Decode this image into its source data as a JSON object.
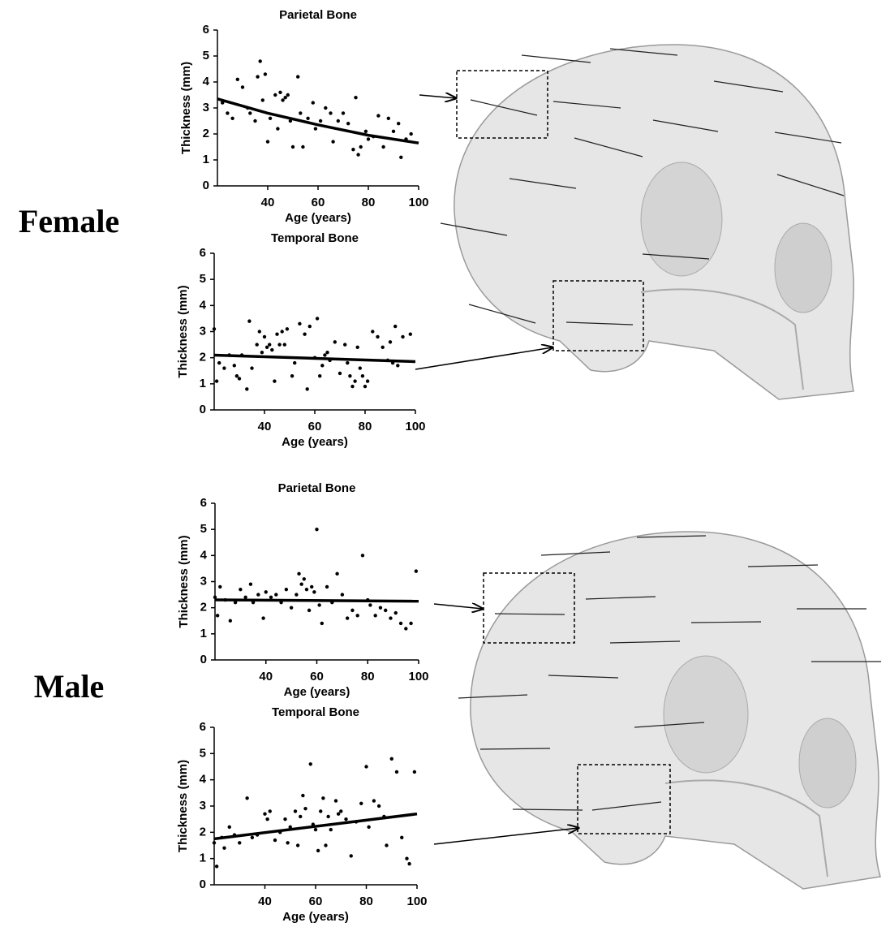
{
  "group_labels": [
    "Female",
    "Male"
  ],
  "chart_data": [
    {
      "type": "scatter",
      "title": "Parietal Bone",
      "x_label": "Age (years)",
      "y_label": "Thickness (mm)",
      "xlim": [
        20,
        100
      ],
      "ylim": [
        0,
        6
      ],
      "xticks": [
        40,
        60,
        80,
        100
      ],
      "yticks": [
        0,
        1,
        2,
        3,
        4,
        5,
        6
      ],
      "series": [
        {
          "type": "scatter",
          "color": "#000000",
          "x": [
            22,
            24,
            26,
            28,
            30,
            32,
            33,
            35,
            36,
            37,
            38,
            39,
            40,
            41,
            43,
            44,
            45,
            46,
            47,
            48,
            49,
            50,
            52,
            53,
            54,
            56,
            58,
            59,
            61,
            63,
            65,
            66,
            68,
            70,
            72,
            74,
            75,
            76,
            77,
            79,
            80,
            82,
            84,
            86,
            88,
            90,
            92,
            93,
            95,
            97
          ],
          "values": [
            3.2,
            2.8,
            2.6,
            4.1,
            3.8,
            3.0,
            2.8,
            2.5,
            4.2,
            4.8,
            3.3,
            4.3,
            1.7,
            2.6,
            3.5,
            2.2,
            3.6,
            3.3,
            3.4,
            3.5,
            2.5,
            1.5,
            4.2,
            2.8,
            1.5,
            2.6,
            3.2,
            2.2,
            2.5,
            3.0,
            2.8,
            1.7,
            2.5,
            2.8,
            2.4,
            1.4,
            3.4,
            1.2,
            1.5,
            2.1,
            1.8,
            1.9,
            2.7,
            1.5,
            2.6,
            2.1,
            2.4,
            1.1,
            1.8,
            2.0
          ]
        },
        {
          "type": "line",
          "color": "#000000",
          "x": [
            20,
            40,
            60,
            80,
            100
          ],
          "values": [
            3.35,
            2.8,
            2.35,
            1.95,
            1.65
          ]
        }
      ]
    },
    {
      "type": "scatter",
      "title": "Temporal Bone",
      "x_label": "Age (years)",
      "y_label": "Thickness (mm)",
      "xlim": [
        20,
        100
      ],
      "ylim": [
        0,
        6
      ],
      "xticks": [
        40,
        60,
        80,
        100
      ],
      "yticks": [
        0,
        1,
        2,
        3,
        4,
        5,
        6
      ],
      "series": [
        {
          "type": "scatter",
          "color": "#000000",
          "x": [
            20,
            21,
            22,
            24,
            26,
            28,
            29,
            30,
            31,
            33,
            34,
            35,
            37,
            38,
            39,
            40,
            41,
            42,
            43,
            44,
            45,
            46,
            47,
            48,
            49,
            51,
            52,
            54,
            56,
            57,
            58,
            60,
            61,
            62,
            63,
            64,
            65,
            66,
            68,
            70,
            72,
            73,
            74,
            75,
            76,
            77,
            78,
            79,
            80,
            81,
            83,
            85,
            87,
            89,
            90,
            91,
            92,
            93,
            95,
            98
          ],
          "values": [
            3.1,
            1.1,
            1.8,
            1.6,
            2.1,
            1.7,
            1.3,
            1.2,
            2.1,
            0.8,
            3.4,
            1.6,
            2.5,
            3.0,
            2.2,
            2.8,
            2.4,
            2.5,
            2.3,
            1.1,
            2.9,
            2.5,
            3.0,
            2.5,
            3.1,
            1.3,
            1.8,
            3.3,
            2.9,
            0.8,
            3.2,
            2.0,
            3.5,
            1.3,
            1.7,
            2.1,
            2.2,
            1.9,
            2.6,
            1.4,
            2.5,
            1.8,
            1.3,
            0.9,
            1.1,
            2.4,
            1.6,
            1.3,
            0.9,
            1.1,
            3.0,
            2.8,
            2.4,
            1.9,
            2.6,
            1.8,
            3.2,
            1.7,
            2.8,
            2.9
          ]
        },
        {
          "type": "line",
          "color": "#000000",
          "x": [
            20,
            100
          ],
          "values": [
            2.1,
            1.85
          ]
        }
      ]
    },
    {
      "type": "scatter",
      "title": "Parietal Bone",
      "x_label": "Age (years)",
      "y_label": "Thickness (mm)",
      "xlim": [
        20,
        100
      ],
      "ylim": [
        0,
        6
      ],
      "xticks": [
        40,
        60,
        80,
        100
      ],
      "yticks": [
        0,
        1,
        2,
        3,
        4,
        5,
        6
      ],
      "series": [
        {
          "type": "scatter",
          "color": "#000000",
          "x": [
            20,
            21,
            22,
            24,
            26,
            28,
            30,
            32,
            34,
            35,
            37,
            39,
            40,
            42,
            44,
            46,
            48,
            50,
            52,
            53,
            54,
            55,
            56,
            57,
            58,
            59,
            60,
            61,
            62,
            64,
            66,
            68,
            70,
            72,
            74,
            76,
            78,
            80,
            81,
            83,
            85,
            87,
            89,
            91,
            93,
            95,
            97,
            99
          ],
          "values": [
            2.4,
            1.7,
            2.8,
            2.3,
            1.5,
            2.2,
            2.7,
            2.4,
            2.9,
            2.2,
            2.5,
            1.6,
            2.6,
            2.4,
            2.5,
            2.2,
            2.7,
            2.0,
            2.5,
            3.3,
            2.9,
            3.1,
            2.7,
            1.9,
            2.8,
            2.6,
            5.0,
            2.1,
            1.4,
            2.8,
            2.2,
            3.3,
            2.5,
            1.6,
            1.9,
            1.7,
            4.0,
            2.3,
            2.1,
            1.7,
            2.0,
            1.9,
            1.6,
            1.8,
            1.4,
            1.2,
            1.4,
            3.4
          ]
        },
        {
          "type": "line",
          "color": "#000000",
          "x": [
            20,
            100
          ],
          "values": [
            2.3,
            2.25
          ]
        }
      ]
    },
    {
      "type": "scatter",
      "title": "Temporal Bone",
      "x_label": "Age (years)",
      "y_label": "Thickness (mm)",
      "xlim": [
        20,
        100
      ],
      "ylim": [
        0,
        6
      ],
      "xticks": [
        40,
        60,
        80,
        100
      ],
      "yticks": [
        0,
        1,
        2,
        3,
        4,
        5,
        6
      ],
      "series": [
        {
          "type": "scatter",
          "color": "#000000",
          "x": [
            20,
            21,
            23,
            24,
            26,
            28,
            30,
            33,
            35,
            37,
            40,
            41,
            42,
            44,
            46,
            48,
            49,
            50,
            52,
            53,
            54,
            55,
            56,
            58,
            59,
            60,
            61,
            62,
            63,
            64,
            65,
            66,
            68,
            69,
            70,
            72,
            74,
            76,
            78,
            80,
            81,
            83,
            85,
            87,
            88,
            90,
            92,
            94,
            96,
            97,
            99
          ],
          "values": [
            1.6,
            0.7,
            1.8,
            1.4,
            2.2,
            1.9,
            1.6,
            3.3,
            1.8,
            1.9,
            2.7,
            2.5,
            2.8,
            1.7,
            2.0,
            2.5,
            1.6,
            2.2,
            2.8,
            1.5,
            2.6,
            3.4,
            2.9,
            4.6,
            2.3,
            2.1,
            1.3,
            2.8,
            3.3,
            1.5,
            2.6,
            2.1,
            3.2,
            2.7,
            2.8,
            2.5,
            1.1,
            2.4,
            3.1,
            4.5,
            2.2,
            3.2,
            3.0,
            2.6,
            1.5,
            4.8,
            4.3,
            1.8,
            1.0,
            0.8,
            4.3
          ]
        },
        {
          "type": "line",
          "color": "#000000",
          "x": [
            20,
            100
          ],
          "values": [
            1.75,
            2.7
          ]
        }
      ]
    }
  ]
}
